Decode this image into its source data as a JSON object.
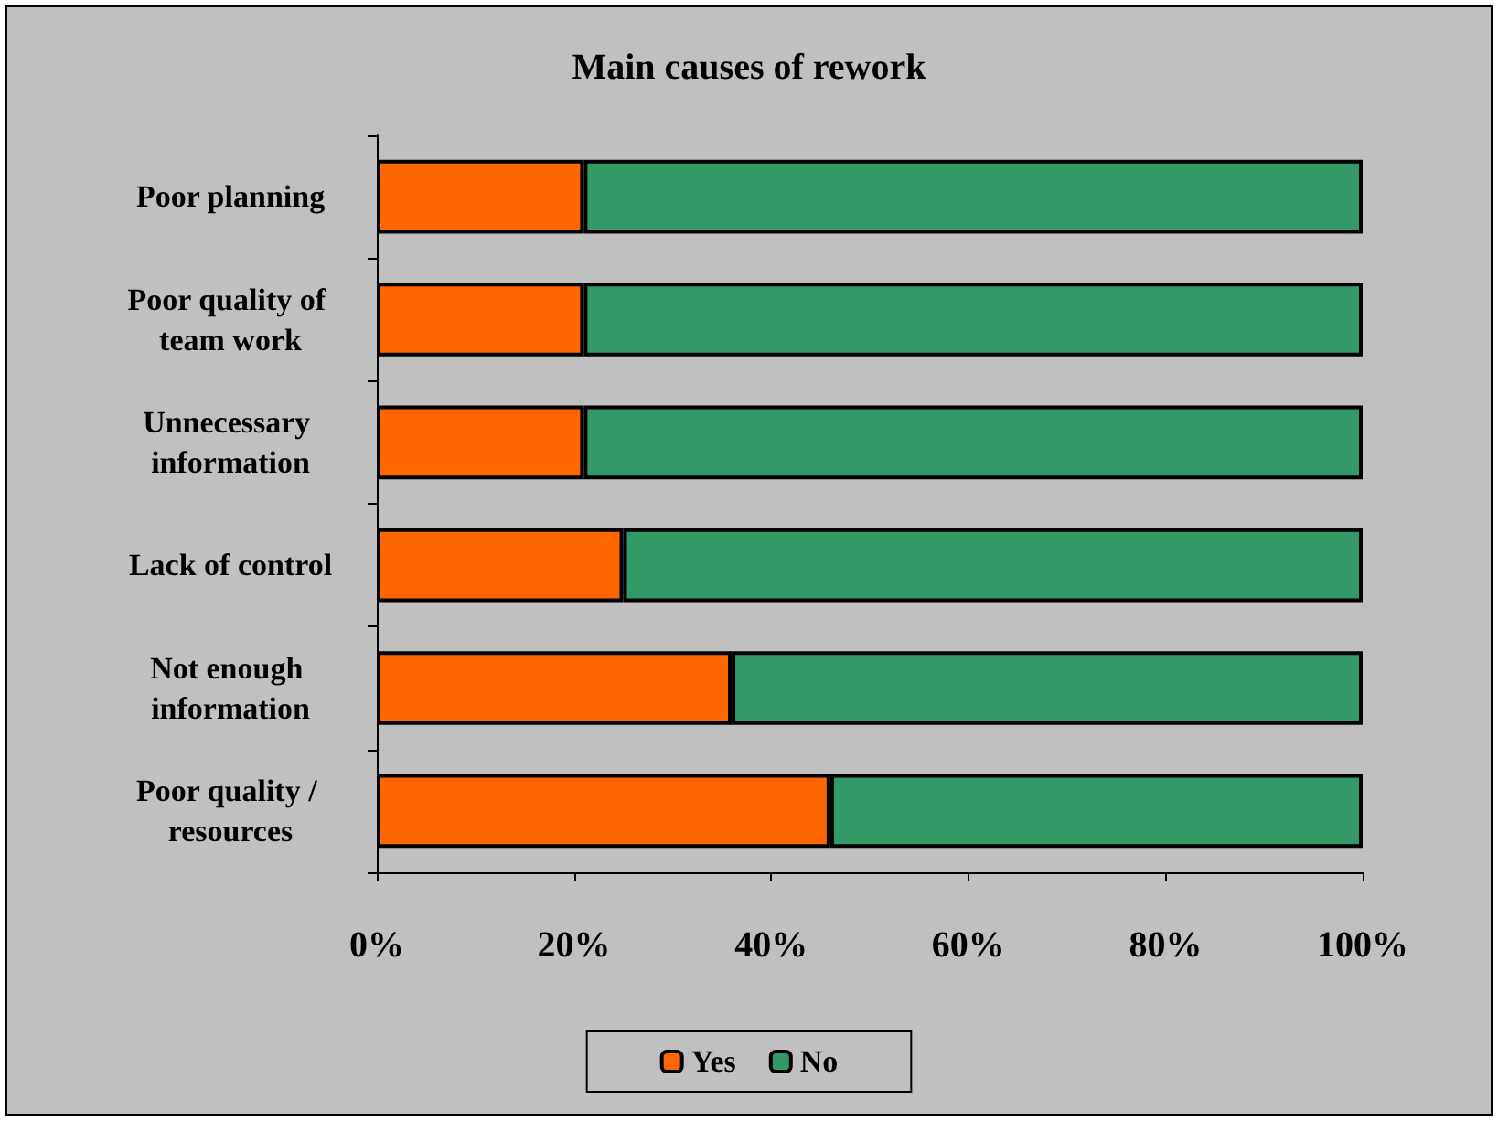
{
  "chart_data": {
    "type": "bar",
    "title": "Main causes of rework",
    "orientation": "horizontal",
    "stacked": true,
    "categories": [
      "Poor planning",
      "Poor quality of team work",
      "Unnecessary information",
      "Lack of control",
      "Not enough information",
      "Poor quality / resources"
    ],
    "series": [
      {
        "name": "Yes",
        "color": "#ff6600",
        "values": [
          21,
          21,
          21,
          25,
          36,
          46
        ]
      },
      {
        "name": "No",
        "color": "#339966",
        "values": [
          79,
          79,
          79,
          75,
          64,
          54
        ]
      }
    ],
    "xlim": [
      0,
      100
    ],
    "xticks": [
      {
        "value": 0,
        "label": "0%"
      },
      {
        "value": 20,
        "label": "20%"
      },
      {
        "value": 40,
        "label": "40%"
      },
      {
        "value": 60,
        "label": "60%"
      },
      {
        "value": 80,
        "label": "80%"
      },
      {
        "value": 100,
        "label": "100%"
      }
    ],
    "grid": false,
    "legend": "bottom"
  }
}
